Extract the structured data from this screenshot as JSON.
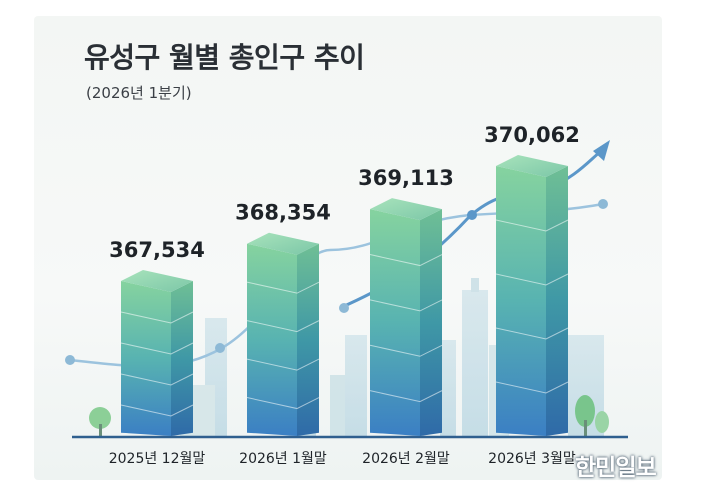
{
  "chart_data": {
    "type": "bar",
    "title": "유성구 월별 총인구 추이",
    "subtitle": "(2026년 1분기)",
    "categories": [
      "2025년 12월말",
      "2026년 1월말",
      "2026년 2월말",
      "2026년 3월말"
    ],
    "values": [
      367534,
      368354,
      369113,
      370062
    ],
    "value_labels": [
      "367,534",
      "368,354",
      "369,113",
      "370,062"
    ],
    "xlabel": "",
    "ylabel": "",
    "grid": false,
    "legend": "none",
    "trend_arrow": true
  },
  "watermark": "한민일보",
  "colors": {
    "bar_top": "#8fd6a8",
    "bar_mid": "#5fb8b4",
    "bar_bottom": "#3f86c6",
    "trend_line": "#5b97c9",
    "text": "#1e2328"
  },
  "icons": [
    "tree-icon",
    "city-skyline-icon",
    "trend-arrow-icon"
  ]
}
